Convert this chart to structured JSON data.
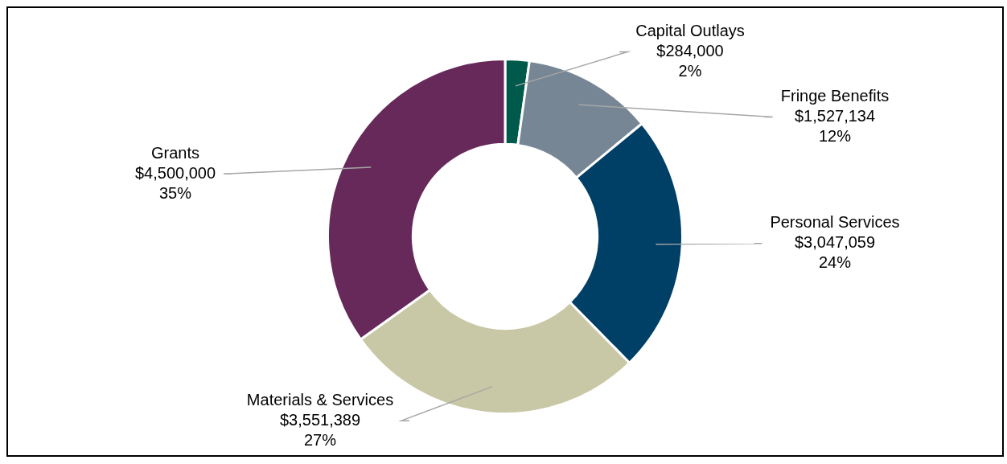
{
  "chart_data": {
    "type": "donut",
    "categories": [
      "Capital Outlays",
      "Fringe Benefits",
      "Personal Services",
      "Materials & Services",
      "Grants"
    ],
    "values": [
      284000,
      1527134,
      3047059,
      3551389,
      4500000
    ],
    "colors": [
      "#005a4b",
      "#768695",
      "#003f66",
      "#c8c8a6",
      "#66295a"
    ],
    "value_labels": [
      "$284,000\n2%",
      "$1,527,134\n12%",
      "$3,047,059\n24%",
      "$3,551,389\n27%",
      "$4,500,000\n35%"
    ],
    "legend": false
  }
}
